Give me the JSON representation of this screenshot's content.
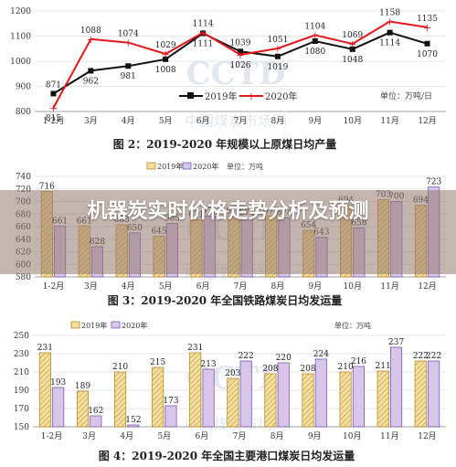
{
  "headline": "机器炭实时价格走势分析及预测",
  "watermark": "CCTD",
  "watermark_sub": "中国煤炭市场网",
  "colors": {
    "series2019_line": "#111111",
    "series2020_line": "#e0181c",
    "bar2019_fill": "#f3df9e",
    "bar2019_stroke": "#b88a2a",
    "bar2020_fill": "#d8c6ea",
    "bar2020_stroke": "#7a57b0",
    "grid": "#dddddd",
    "banner": "#9a7a6e"
  },
  "chart_data": [
    {
      "type": "line",
      "title": "图 2：2019-2020 年规模以上原煤日均产量",
      "unit_label": "单位：万吨/日",
      "categories": [
        "1-2月",
        "3月",
        "4月",
        "5月",
        "6月",
        "7月",
        "8月",
        "9月",
        "10月",
        "11月",
        "12月"
      ],
      "ylim": [
        800,
        1200
      ],
      "yticks": [
        800,
        900,
        1000,
        1100,
        1200
      ],
      "grid": true,
      "legend_position": "bottom-center",
      "series": [
        {
          "name": "2019年",
          "values": [
            871,
            962,
            981,
            1008,
            1111,
            1039,
            1019,
            1080,
            1048,
            1114,
            1070
          ]
        },
        {
          "name": "2020年",
          "values": [
            815,
            1088,
            1074,
            1029,
            1114,
            1026,
            1051,
            1104,
            1069,
            1158,
            1135
          ]
        }
      ]
    },
    {
      "type": "bar",
      "title": "图 3：2019-2020 年全国铁路煤炭日均发运量",
      "unit_label": "单位：万吨",
      "categories": [
        "1-2月",
        "3月",
        "4月",
        "5月",
        "6月",
        "7月",
        "8月",
        "9月",
        "10月",
        "11月",
        "12月"
      ],
      "ylim": [
        580,
        740
      ],
      "yticks": [
        580,
        600,
        620,
        640,
        660,
        680,
        700,
        720,
        740
      ],
      "grid": true,
      "legend_position": "top-center",
      "series": [
        {
          "name": "2019年",
          "values": [
            716,
            661,
            663,
            645,
            671,
            677,
            677,
            654,
            694,
            703,
            694
          ]
        },
        {
          "name": "2020年",
          "values": [
            661,
            628,
            650,
            665,
            677,
            674,
            674,
            643,
            658,
            700,
            723
          ]
        }
      ]
    },
    {
      "type": "bar",
      "title": "图 4：2019-2020 年全国主要港口煤炭日均发运量",
      "unit_label": "单位：万吨",
      "categories": [
        "1-2月",
        "3月",
        "4月",
        "5月",
        "6月",
        "7月",
        "8月",
        "9月",
        "10月",
        "11月",
        "12月"
      ],
      "ylim": [
        150,
        250
      ],
      "yticks": [
        150,
        170,
        190,
        210,
        230,
        250
      ],
      "grid": true,
      "legend_position": "top-center",
      "series": [
        {
          "name": "2019年",
          "values": [
            231,
            189,
            210,
            215,
            231,
            203,
            208,
            208,
            210,
            211,
            222
          ]
        },
        {
          "name": "2020年",
          "values": [
            193,
            162,
            152,
            173,
            213,
            222,
            220,
            224,
            216,
            237,
            222
          ]
        }
      ]
    }
  ]
}
